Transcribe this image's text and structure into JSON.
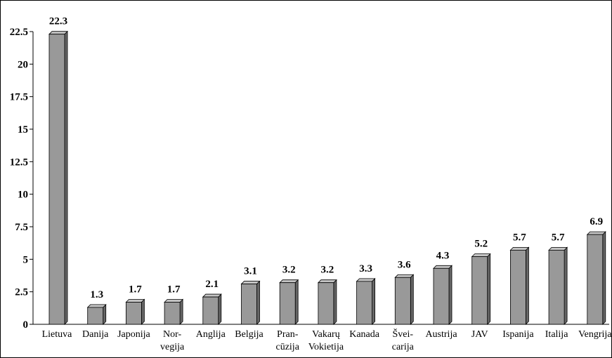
{
  "chart_data": {
    "type": "bar",
    "categories": [
      [
        "Lietuva"
      ],
      [
        "Danija"
      ],
      [
        "Japonija"
      ],
      [
        "Nor-",
        "vegija"
      ],
      [
        "Anglija"
      ],
      [
        "Belgija"
      ],
      [
        "Pran-",
        "cūzija"
      ],
      [
        "Vakarų",
        "Vokietija"
      ],
      [
        "Kanada"
      ],
      [
        "Švei-",
        "carija"
      ],
      [
        "Austrija"
      ],
      [
        "JAV"
      ],
      [
        "Ispanija"
      ],
      [
        "Italija"
      ],
      [
        "Vengrija"
      ]
    ],
    "values": [
      22.3,
      1.3,
      1.7,
      1.7,
      2.1,
      3.1,
      3.2,
      3.2,
      3.3,
      3.6,
      4.3,
      5.2,
      5.7,
      5.7,
      6.9
    ],
    "value_labels": [
      "22.3",
      "1.3",
      "1.7",
      "1.7",
      "2.1",
      "3.1",
      "3.2",
      "3.2",
      "3.3",
      "3.6",
      "4.3",
      "5.2",
      "5.7",
      "5.7",
      "6.9"
    ],
    "yticks": [
      0,
      2.5,
      5,
      7.5,
      10,
      12.5,
      15,
      17.5,
      20,
      22.5
    ],
    "ytick_labels": [
      "0",
      "2.5",
      "5",
      "7.5",
      "10",
      "12.5",
      "15",
      "17.5",
      "20",
      "22.5"
    ],
    "ylim": [
      0,
      22.5
    ],
    "grid": false,
    "bar_color": "#999999",
    "bar_side_color": "#666666",
    "bar_top_color": "#c4c4c4"
  }
}
